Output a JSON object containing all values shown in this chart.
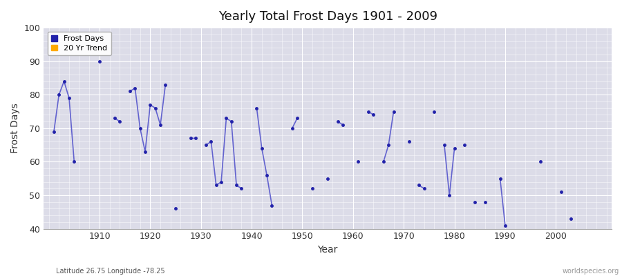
{
  "title": "Yearly Total Frost Days 1901 - 2009",
  "xlabel": "Year",
  "ylabel": "Frost Days",
  "subtitle": "Latitude 26.75 Longitude -78.25",
  "watermark": "worldspecies.org",
  "ylim": [
    40,
    100
  ],
  "xlim": [
    1899,
    2011
  ],
  "yticks": [
    40,
    50,
    60,
    70,
    80,
    90,
    100
  ],
  "xticks": [
    1910,
    1920,
    1930,
    1940,
    1950,
    1960,
    1970,
    1980,
    1990,
    2000
  ],
  "line_color": "#5555cc",
  "marker_color": "#2222aa",
  "plot_bg_color": "#dcdce8",
  "fig_bg_color": "#ffffff",
  "legend_frost_color": "#2222aa",
  "legend_trend_color": "#ffaa00",
  "data": [
    [
      1901,
      69
    ],
    [
      1902,
      80
    ],
    [
      1903,
      84
    ],
    [
      1904,
      79
    ],
    [
      1905,
      60
    ],
    [
      1906,
      null
    ],
    [
      1907,
      null
    ],
    [
      1908,
      null
    ],
    [
      1909,
      null
    ],
    [
      1910,
      90
    ],
    [
      1911,
      null
    ],
    [
      1912,
      null
    ],
    [
      1913,
      73
    ],
    [
      1914,
      72
    ],
    [
      1915,
      null
    ],
    [
      1916,
      81
    ],
    [
      1917,
      82
    ],
    [
      1918,
      70
    ],
    [
      1919,
      63
    ],
    [
      1920,
      77
    ],
    [
      1921,
      76
    ],
    [
      1922,
      71
    ],
    [
      1923,
      83
    ],
    [
      1924,
      null
    ],
    [
      1925,
      46
    ],
    [
      1926,
      null
    ],
    [
      1927,
      null
    ],
    [
      1928,
      67
    ],
    [
      1929,
      67
    ],
    [
      1930,
      null
    ],
    [
      1931,
      65
    ],
    [
      1932,
      66
    ],
    [
      1933,
      53
    ],
    [
      1934,
      54
    ],
    [
      1935,
      73
    ],
    [
      1936,
      72
    ],
    [
      1937,
      53
    ],
    [
      1938,
      52
    ],
    [
      1939,
      null
    ],
    [
      1940,
      null
    ],
    [
      1941,
      76
    ],
    [
      1942,
      64
    ],
    [
      1943,
      56
    ],
    [
      1944,
      47
    ],
    [
      1945,
      null
    ],
    [
      1946,
      null
    ],
    [
      1947,
      null
    ],
    [
      1948,
      70
    ],
    [
      1949,
      73
    ],
    [
      1950,
      null
    ],
    [
      1951,
      null
    ],
    [
      1952,
      52
    ],
    [
      1953,
      null
    ],
    [
      1954,
      null
    ],
    [
      1955,
      55
    ],
    [
      1956,
      null
    ],
    [
      1957,
      72
    ],
    [
      1958,
      71
    ],
    [
      1959,
      null
    ],
    [
      1960,
      null
    ],
    [
      1961,
      60
    ],
    [
      1962,
      null
    ],
    [
      1963,
      75
    ],
    [
      1964,
      74
    ],
    [
      1965,
      null
    ],
    [
      1966,
      60
    ],
    [
      1967,
      65
    ],
    [
      1968,
      75
    ],
    [
      1969,
      null
    ],
    [
      1970,
      null
    ],
    [
      1971,
      66
    ],
    [
      1972,
      null
    ],
    [
      1973,
      53
    ],
    [
      1974,
      52
    ],
    [
      1975,
      null
    ],
    [
      1976,
      75
    ],
    [
      1977,
      null
    ],
    [
      1978,
      65
    ],
    [
      1979,
      50
    ],
    [
      1980,
      64
    ],
    [
      1981,
      null
    ],
    [
      1982,
      65
    ],
    [
      1983,
      null
    ],
    [
      1984,
      48
    ],
    [
      1985,
      null
    ],
    [
      1986,
      48
    ],
    [
      1987,
      null
    ],
    [
      1988,
      null
    ],
    [
      1989,
      55
    ],
    [
      1990,
      41
    ],
    [
      1991,
      null
    ],
    [
      1992,
      null
    ],
    [
      1993,
      null
    ],
    [
      1994,
      null
    ],
    [
      1995,
      null
    ],
    [
      1996,
      null
    ],
    [
      1997,
      60
    ],
    [
      1998,
      null
    ],
    [
      1999,
      null
    ],
    [
      2000,
      null
    ],
    [
      2001,
      51
    ],
    [
      2002,
      null
    ],
    [
      2003,
      43
    ],
    [
      2004,
      null
    ],
    [
      2005,
      null
    ],
    [
      2006,
      null
    ],
    [
      2007,
      null
    ],
    [
      2008,
      null
    ],
    [
      2009,
      null
    ]
  ]
}
